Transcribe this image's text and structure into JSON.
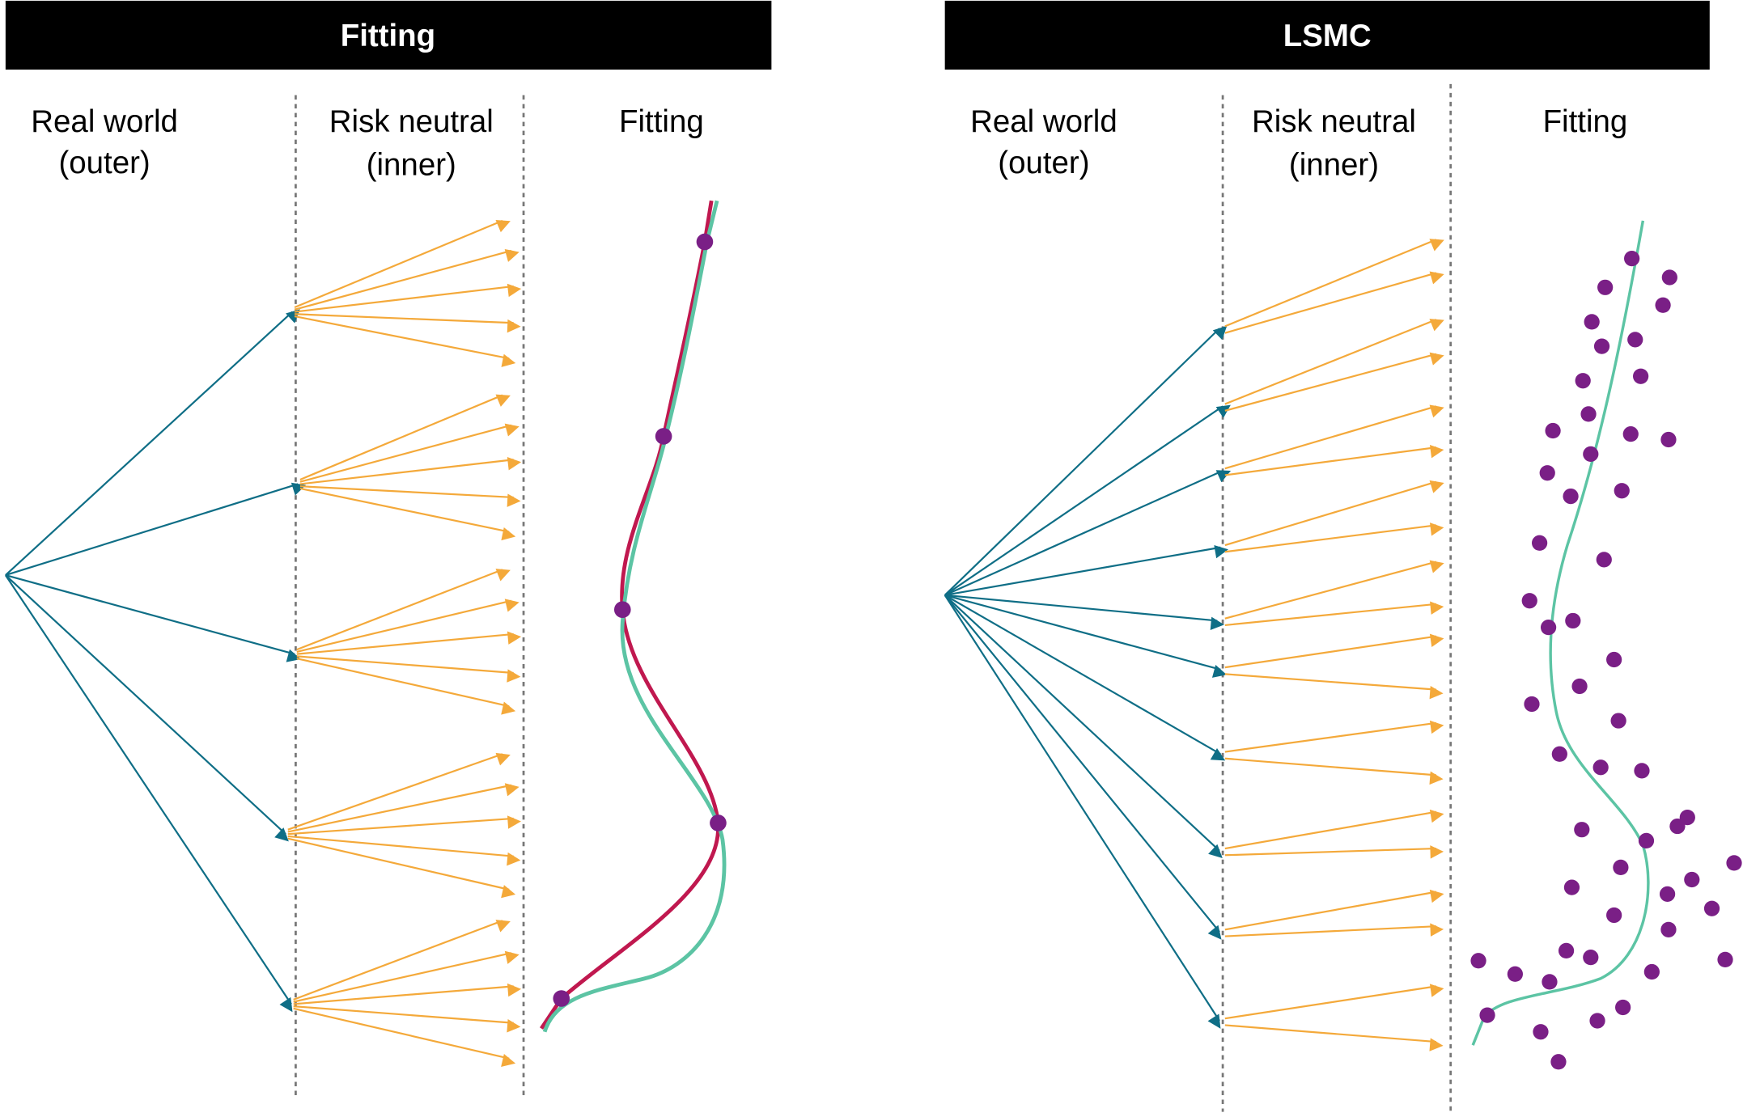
{
  "colors": {
    "header_bg": "#000000",
    "outer_arrow": "#0f6e86",
    "inner_arrow": "#f4a93a",
    "fit_red": "#c0184f",
    "fit_teal": "#5cc4a4",
    "dot": "#7a1f86",
    "divider": "#777777"
  },
  "panels": [
    {
      "title": "Fitting",
      "col1": [
        "Real world",
        "(outer)"
      ],
      "col2": [
        "Risk neutral",
        "(inner)"
      ],
      "col3": "Fitting"
    },
    {
      "title": "LSMC",
      "col1": [
        "Real world",
        "(outer)"
      ],
      "col2": [
        "Risk neutral",
        "(inner)"
      ],
      "col3": "Fitting"
    }
  ]
}
